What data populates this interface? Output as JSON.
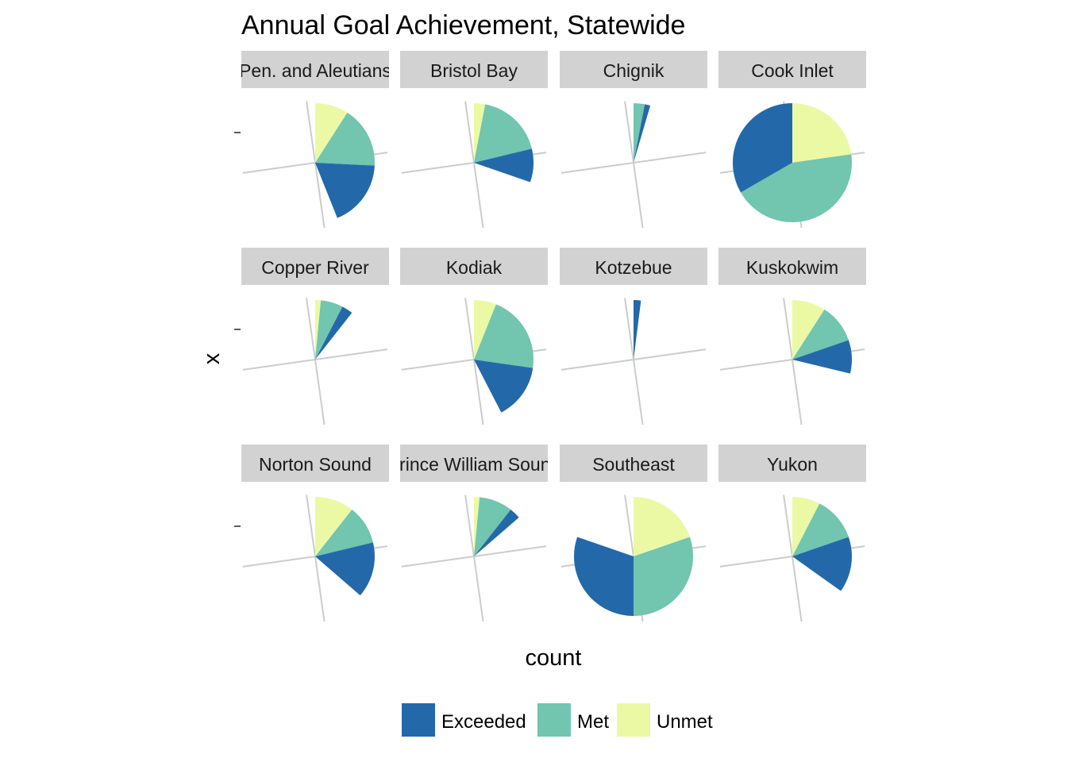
{
  "chart_data": {
    "type": "pie",
    "title": "Annual Goal Achievement, Statewide",
    "xlabel": "count",
    "ylabel": "x",
    "legend_position": "bottom",
    "legend": [
      "Exceeded",
      "Met",
      "Unmet"
    ],
    "colors": {
      "Exceeded": "#2369aa",
      "Met": "#72c5ae",
      "Unmet": "#ebf9a4"
    },
    "layout": "facet_wrap 3x4, coord_polar theta=y, free scale",
    "panels": [
      {
        "label": "Pen. and Aleutians",
        "values": {
          "Exceeded": 12,
          "Met": 11,
          "Unmet": 6
        }
      },
      {
        "label": "Bristol Bay",
        "values": {
          "Exceeded": 6,
          "Met": 12,
          "Unmet": 2
        }
      },
      {
        "label": "Chignik",
        "values": {
          "Exceeded": 1,
          "Met": 2,
          "Unmet": 0
        }
      },
      {
        "label": "Cook Inlet",
        "values": {
          "Exceeded": 22,
          "Met": 29,
          "Unmet": 15
        }
      },
      {
        "label": "Copper River",
        "values": {
          "Exceeded": 2,
          "Met": 4,
          "Unmet": 1
        }
      },
      {
        "label": "Kodiak",
        "values": {
          "Exceeded": 10,
          "Met": 14,
          "Unmet": 4
        }
      },
      {
        "label": "Kotzebue",
        "values": {
          "Exceeded": 1,
          "Met": 0,
          "Unmet": 0
        }
      },
      {
        "label": "Kuskokwim",
        "values": {
          "Exceeded": 6,
          "Met": 7,
          "Unmet": 6
        }
      },
      {
        "label": "Norton Sound",
        "values": {
          "Exceeded": 10,
          "Met": 7,
          "Unmet": 7
        }
      },
      {
        "label": "Prince William Sound",
        "values": {
          "Exceeded": 2,
          "Met": 6,
          "Unmet": 1
        }
      },
      {
        "label": "Southeast",
        "values": {
          "Exceeded": 20,
          "Met": 20,
          "Unmet": 13
        }
      },
      {
        "label": "Yukon",
        "values": {
          "Exceeded": 10,
          "Met": 8,
          "Unmet": 5
        }
      }
    ]
  }
}
